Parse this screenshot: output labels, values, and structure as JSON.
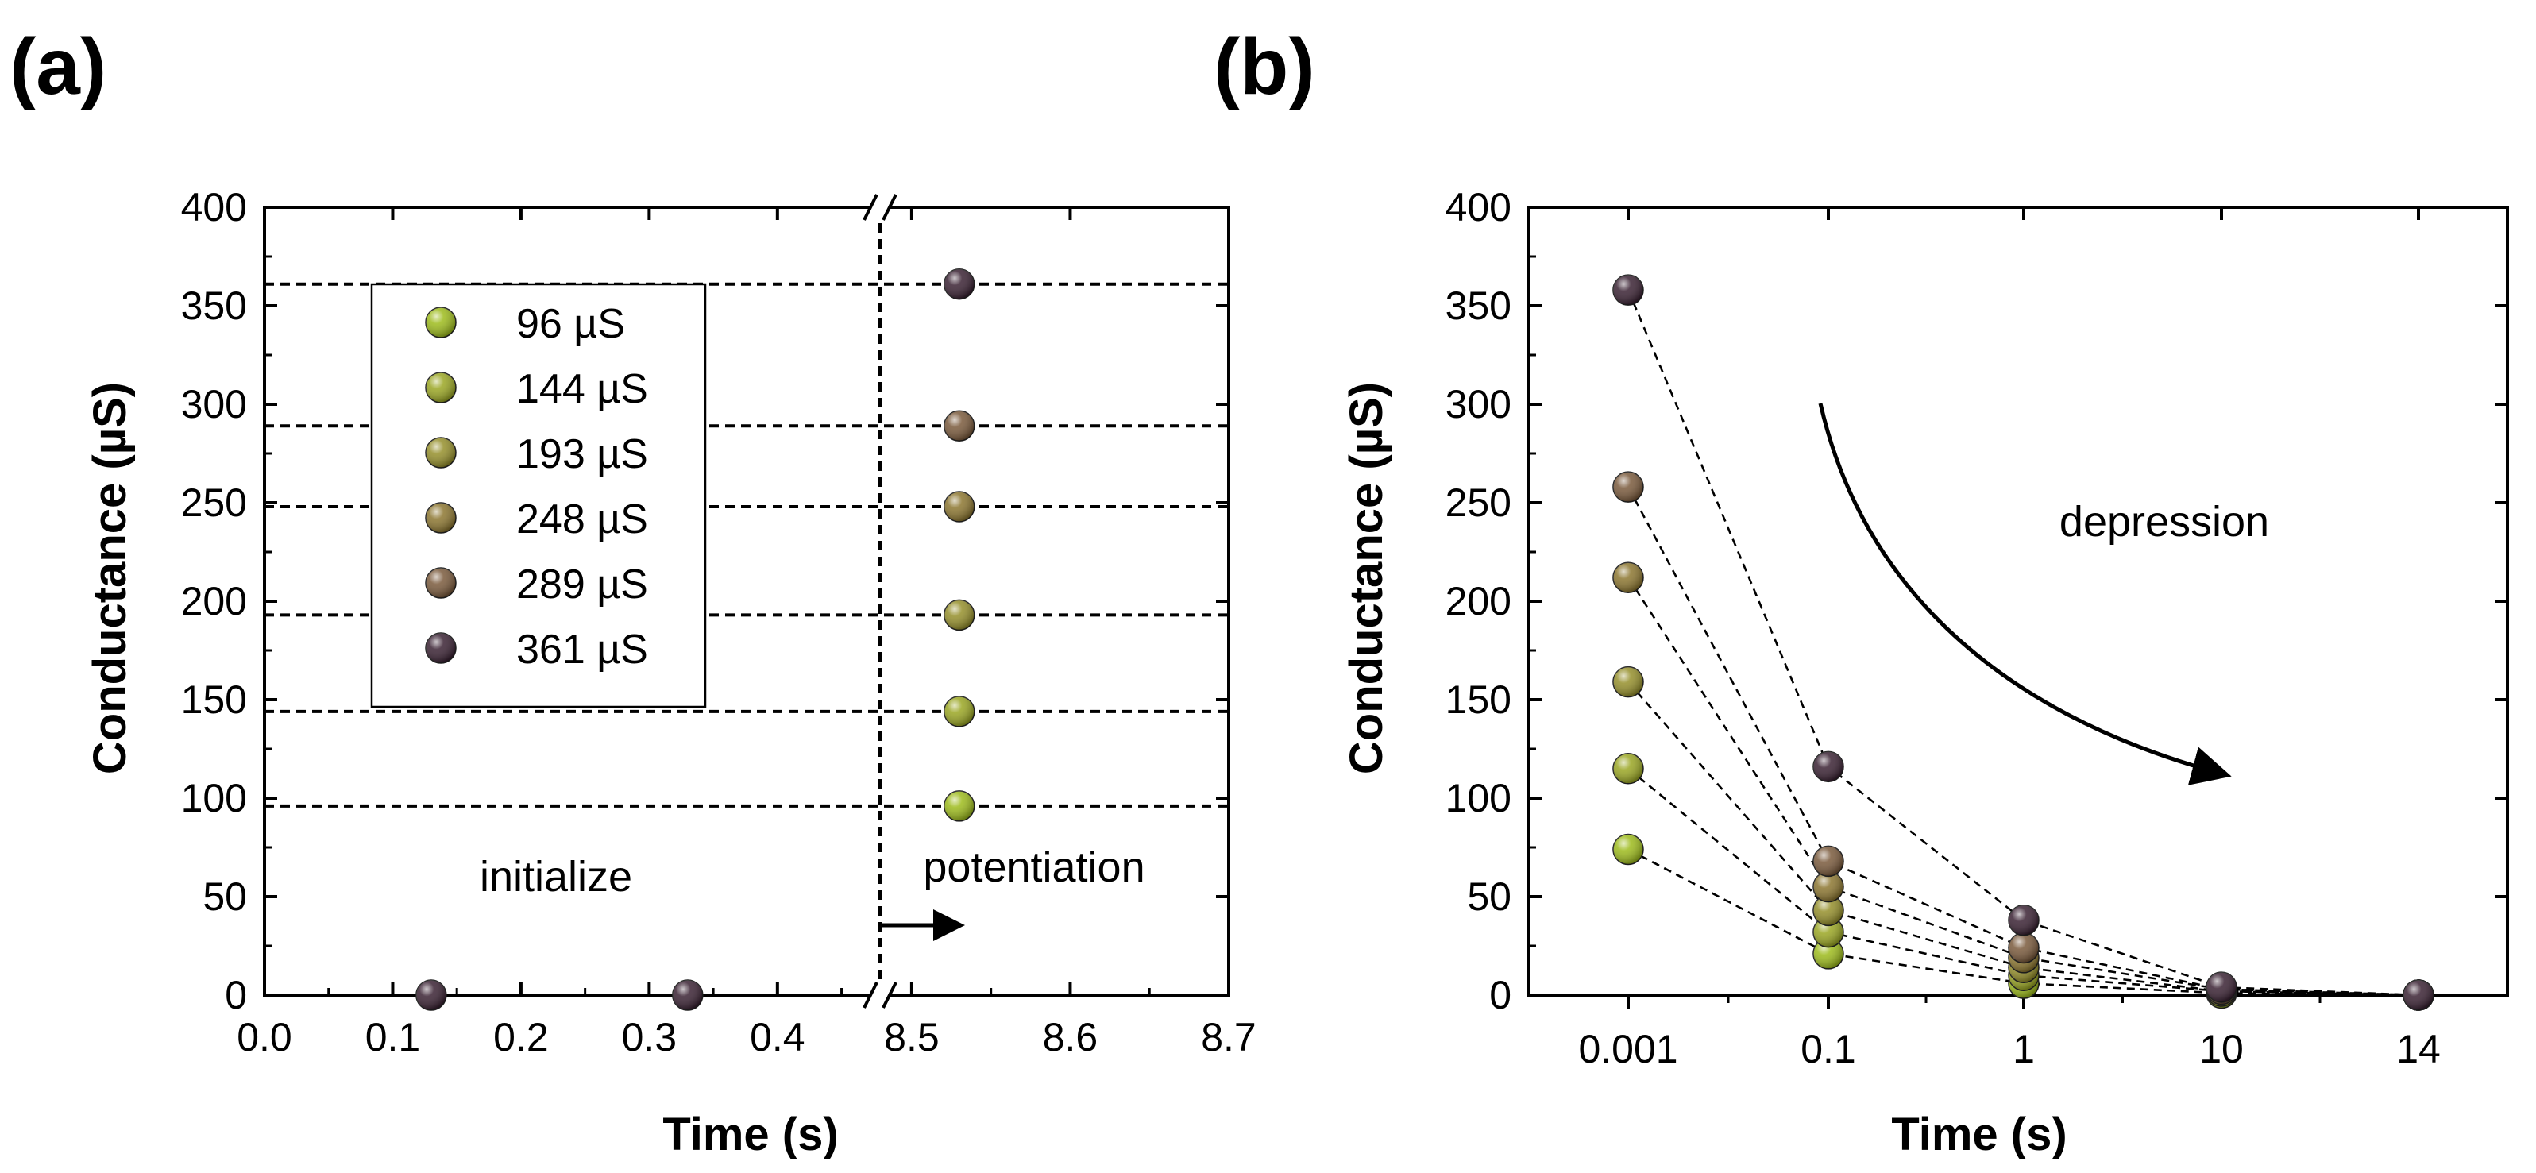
{
  "colors": {
    "c96": "#9dbb1c",
    "c144": "#9aa623",
    "c193": "#958f2b",
    "c248": "#8c7630",
    "c289": "#7a5a3c",
    "c361": "#3a2233"
  },
  "chart_data": [
    {
      "panel_label": "(a)",
      "type": "scatter",
      "xlabel": "Time (s)",
      "ylabel": "Conductance (µS)",
      "ylim": [
        0,
        400
      ],
      "yticks": [
        0,
        50,
        100,
        150,
        200,
        250,
        300,
        350,
        400
      ],
      "x_left_segment": {
        "range": [
          0.0,
          0.48
        ],
        "ticks": [
          "0.0",
          "0.1",
          "0.2",
          "0.3",
          "0.4"
        ]
      },
      "x_right_segment": {
        "range": [
          8.48,
          8.7
        ],
        "ticks": [
          "8.5",
          "8.6",
          "8.7"
        ]
      },
      "axis_break": true,
      "legend": [
        "96 µS",
        "144 µS",
        "193 µS",
        "248 µS",
        "289 µS",
        "361 µS"
      ],
      "initialize_points": [
        {
          "x": 0.13,
          "y": 0,
          "series": "361 µS"
        },
        {
          "x": 0.33,
          "y": 0,
          "series": "361 µS"
        }
      ],
      "potentiation_points": [
        {
          "x": 8.53,
          "y": 96,
          "series": "96 µS"
        },
        {
          "x": 8.53,
          "y": 144,
          "series": "144 µS"
        },
        {
          "x": 8.53,
          "y": 193,
          "series": "193 µS"
        },
        {
          "x": 8.53,
          "y": 248,
          "series": "248 µS"
        },
        {
          "x": 8.53,
          "y": 289,
          "series": "289 µS"
        },
        {
          "x": 8.53,
          "y": 361,
          "series": "361 µS"
        }
      ],
      "reference_lines_y": [
        96,
        144,
        193,
        248,
        289,
        361
      ],
      "annotations": {
        "initialize": "initialize",
        "potentiation": "potentiation"
      }
    },
    {
      "panel_label": "(b)",
      "type": "scatter",
      "xlabel": "Time (s)",
      "ylabel": "Conductance (µS)",
      "ylim": [
        0,
        400
      ],
      "yticks": [
        0,
        50,
        100,
        150,
        200,
        250,
        300,
        350,
        400
      ],
      "categories": [
        "0.001",
        "0.1",
        "1",
        "10",
        "14"
      ],
      "series": [
        {
          "name": "96 µS",
          "values": [
            74,
            21,
            6,
            1,
            0
          ]
        },
        {
          "name": "144 µS",
          "values": [
            115,
            32,
            10,
            2,
            0
          ]
        },
        {
          "name": "193 µS",
          "values": [
            159,
            43,
            14,
            2,
            0
          ]
        },
        {
          "name": "248 µS",
          "values": [
            212,
            55,
            19,
            3,
            0
          ]
        },
        {
          "name": "289 µS",
          "values": [
            258,
            68,
            24,
            3,
            0
          ]
        },
        {
          "name": "361 µS",
          "values": [
            358,
            116,
            38,
            4,
            0
          ]
        }
      ],
      "annotation": "depression"
    }
  ]
}
